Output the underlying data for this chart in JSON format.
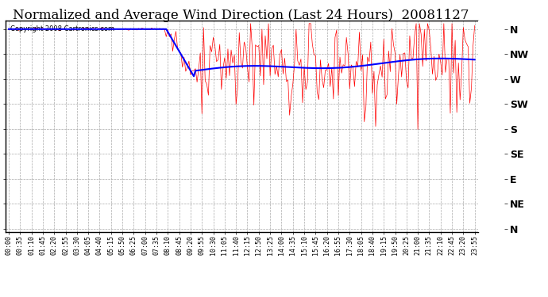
{
  "title": "Normalized and Average Wind Direction (Last 24 Hours)  20081127",
  "copyright": "Copyright 2008 Cartronics.com",
  "background_color": "#ffffff",
  "plot_bg_color": "#ffffff",
  "grid_color": "#aaaaaa",
  "y_labels": [
    "N",
    "NW",
    "W",
    "SW",
    "S",
    "SE",
    "E",
    "NE",
    "N"
  ],
  "y_ticks": [
    360,
    315,
    270,
    225,
    180,
    135,
    90,
    45,
    0
  ],
  "ylim": [
    -5,
    375
  ],
  "x_tick_labels": [
    "00:00",
    "00:35",
    "01:10",
    "01:45",
    "02:20",
    "02:55",
    "03:30",
    "04:05",
    "04:40",
    "05:15",
    "05:50",
    "06:25",
    "07:00",
    "07:35",
    "08:10",
    "08:45",
    "09:20",
    "09:55",
    "10:30",
    "11:05",
    "11:40",
    "12:15",
    "12:50",
    "13:25",
    "14:00",
    "14:35",
    "15:10",
    "15:45",
    "16:20",
    "16:55",
    "17:30",
    "18:05",
    "18:40",
    "19:15",
    "19:50",
    "20:25",
    "21:00",
    "21:35",
    "22:10",
    "22:45",
    "23:20",
    "23:55"
  ],
  "red_color": "#ff0000",
  "blue_color": "#0000ff",
  "title_fontsize": 12,
  "tick_fontsize": 6,
  "ylabel_fontsize": 9
}
